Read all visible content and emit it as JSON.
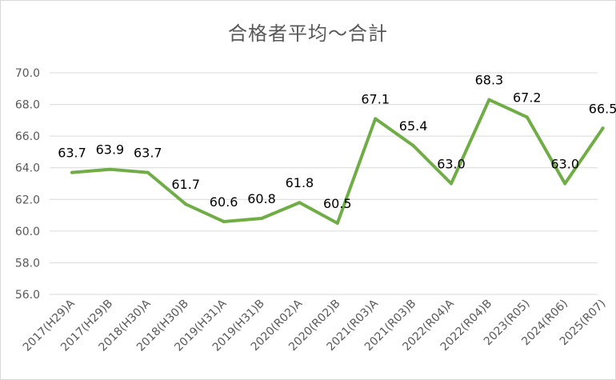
{
  "chart_data": {
    "type": "line",
    "title": "合格者平均～合計",
    "xlabel": "",
    "ylabel": "",
    "categories": [
      "2017(H29)A",
      "2017(H29)B",
      "2018(H30)A",
      "2018(H30)B",
      "2019(H31)A",
      "2019(H31)B",
      "2020(R02)A",
      "2020(R02)B",
      "2021(R03)A",
      "2021(R03)B",
      "2022(R04)A",
      "2022(R04)B",
      "2023(R05)",
      "2024(R06)",
      "2025(R07)"
    ],
    "series": [
      {
        "values": [
          63.7,
          63.9,
          63.7,
          61.7,
          60.6,
          60.8,
          61.8,
          60.5,
          67.1,
          65.4,
          63.0,
          68.3,
          67.2,
          63.0,
          66.5
        ],
        "data_labels": [
          "63.7",
          "63.9",
          "63.7",
          "61.7",
          "60.6",
          "60.8",
          "61.8",
          "60.5",
          "67.1",
          "65.4",
          "63.0",
          "68.3",
          "67.2",
          "63.0",
          "66.5"
        ],
        "color": "#70ad47"
      }
    ],
    "yticks": [
      "56.0",
      "58.0",
      "60.0",
      "62.0",
      "64.0",
      "66.0",
      "68.0",
      "70.0"
    ],
    "ylim": [
      56,
      70
    ],
    "grid": true,
    "legend": "none"
  }
}
